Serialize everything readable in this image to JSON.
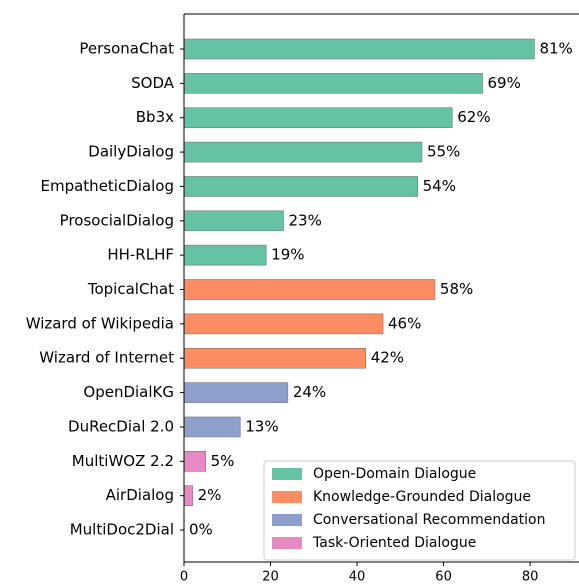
{
  "chart_data": {
    "type": "barh",
    "categories": [
      "PersonaChat",
      "SODA",
      "Bb3x",
      "DailyDialog",
      "EmpatheticDialog",
      "ProsocialDialog",
      "HH-RLHF",
      "TopicalChat",
      "Wizard of Wikipedia",
      "Wizard of Internet",
      "OpenDialKG",
      "DuRecDial 2.0",
      "MultiWOZ 2.2",
      "AirDialog",
      "MultiDoc2Dial"
    ],
    "values": [
      81,
      69,
      62,
      55,
      54,
      23,
      19,
      58,
      46,
      42,
      24,
      13,
      5,
      2,
      0
    ],
    "value_labels": [
      "81%",
      "69%",
      "62%",
      "55%",
      "54%",
      "23%",
      "19%",
      "58%",
      "46%",
      "42%",
      "24%",
      "13%",
      "5%",
      "2%",
      "0%"
    ],
    "colors": [
      "#66c2a5",
      "#66c2a5",
      "#66c2a5",
      "#66c2a5",
      "#66c2a5",
      "#66c2a5",
      "#66c2a5",
      "#fc8d62",
      "#fc8d62",
      "#fc8d62",
      "#8da0cb",
      "#8da0cb",
      "#e78ac3",
      "#e78ac3",
      "#e78ac3"
    ],
    "legend": [
      {
        "name": "Open-Domain Dialogue",
        "color": "#66c2a5"
      },
      {
        "name": "Knowledge-Grounded Dialogue",
        "color": "#fc8d62"
      },
      {
        "name": "Conversational Recommendation",
        "color": "#8da0cb"
      },
      {
        "name": "Task-Oriented Dialogue",
        "color": "#e78ac3"
      }
    ],
    "legend_position": "lower right",
    "xlim": [
      0,
      91.3
    ],
    "xticks": [
      0,
      20,
      40,
      60,
      80
    ]
  }
}
